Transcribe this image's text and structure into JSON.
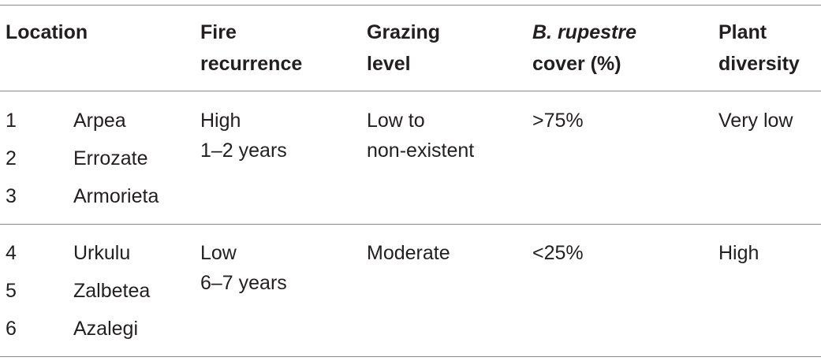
{
  "table": {
    "headers": {
      "location": "Location",
      "fire_line1": "Fire",
      "fire_line2": "recurrence",
      "grazing_line1": "Grazing",
      "grazing_line2": "level",
      "cover_species": "B. rupestre",
      "cover_line2": "cover (%)",
      "diversity_line1": "Plant",
      "diversity_line2": "diversity"
    },
    "groups": [
      {
        "locations": [
          {
            "num": "1",
            "name": "Arpea"
          },
          {
            "num": "2",
            "name": "Errozate"
          },
          {
            "num": "3",
            "name": "Armorieta"
          }
        ],
        "fire_level": "High",
        "fire_interval": "1–2 years",
        "grazing_line1": "Low to",
        "grazing_line2": "non-existent",
        "cover": ">75%",
        "diversity": "Very low"
      },
      {
        "locations": [
          {
            "num": "4",
            "name": "Urkulu"
          },
          {
            "num": "5",
            "name": "Zalbetea"
          },
          {
            "num": "6",
            "name": "Azalegi"
          }
        ],
        "fire_level": "Low",
        "fire_interval": "6–7 years",
        "grazing_line1": "Moderate",
        "grazing_line2": "",
        "cover": "<25%",
        "diversity": "High"
      }
    ]
  }
}
